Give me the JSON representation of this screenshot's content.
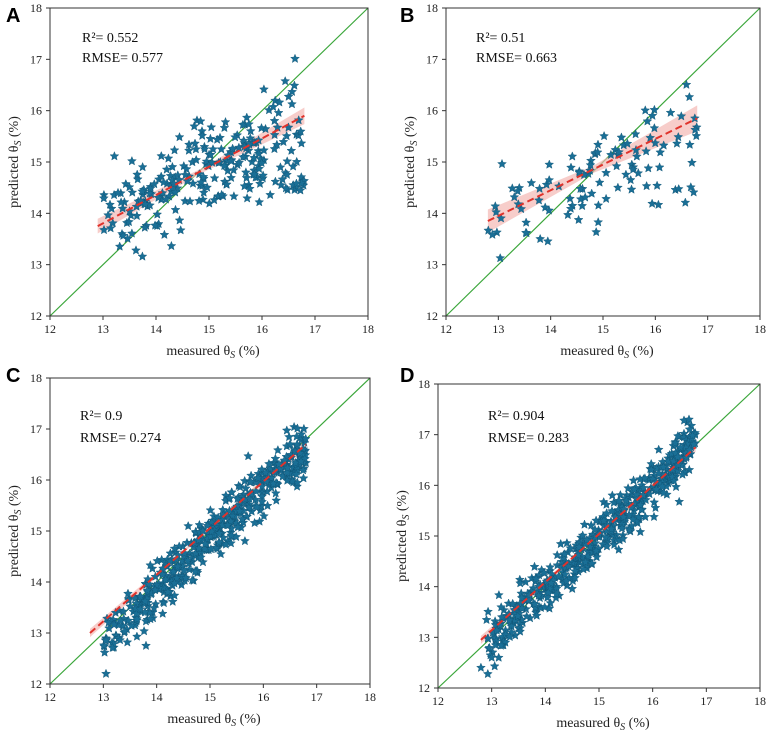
{
  "colors": {
    "marker": "#1a6f96",
    "identity_line": "#3aa63a",
    "fit_line": "#e0332c",
    "confidence_band": "#f4b8b4"
  },
  "chart_data": [
    {
      "panel": "A",
      "type": "scatter",
      "xlabel": "measured θ",
      "xlabel_sub": "S",
      "xlabel_unit": " (%)",
      "ylabel": "predicted  θ",
      "ylabel_sub": "S",
      "ylabel_unit": " (%)",
      "xlim": [
        12,
        18
      ],
      "ylim": [
        12,
        18
      ],
      "xticks": [
        12,
        13,
        14,
        15,
        16,
        17,
        18
      ],
      "yticks": [
        12,
        13,
        14,
        15,
        16,
        17,
        18
      ],
      "r2_text": "R²= 0.552",
      "rmse_text": "RMSE= 0.577",
      "fit": {
        "x": [
          12.9,
          16.8
        ],
        "y": [
          13.75,
          15.9
        ],
        "band": 0.09
      },
      "identity": true,
      "marker": "star",
      "n_points": 260,
      "scatter_center": {
        "x": 14.8,
        "y": 14.75
      }
    },
    {
      "panel": "B",
      "type": "scatter",
      "xlabel": "measured θ",
      "xlabel_sub": "S",
      "xlabel_unit": " (%)",
      "ylabel": "predicted  θ",
      "ylabel_sub": "S",
      "ylabel_unit": " (%)",
      "xlim": [
        12,
        18
      ],
      "ylim": [
        12,
        18
      ],
      "xticks": [
        12,
        13,
        14,
        15,
        16,
        17,
        18
      ],
      "yticks": [
        12,
        13,
        14,
        15,
        16,
        17,
        18
      ],
      "r2_text": "R²= 0.51",
      "rmse_text": "RMSE= 0.663",
      "fit": {
        "x": [
          12.8,
          16.8
        ],
        "y": [
          13.85,
          15.85
        ],
        "band": 0.14
      },
      "identity": true,
      "marker": "star",
      "n_points": 110,
      "scatter_center": {
        "x": 14.9,
        "y": 14.8
      }
    },
    {
      "panel": "C",
      "type": "scatter",
      "xlabel": "measured θ",
      "xlabel_sub": "S",
      "xlabel_unit": " (%)",
      "ylabel": "predicted  θ",
      "ylabel_sub": "S",
      "ylabel_unit": " (%)",
      "xlim": [
        12,
        18
      ],
      "ylim": [
        12,
        18
      ],
      "xticks": [
        12,
        13,
        14,
        15,
        16,
        17,
        18
      ],
      "yticks": [
        12,
        13,
        14,
        15,
        16,
        17,
        18
      ],
      "r2_text": "R²= 0.9",
      "rmse_text": "RMSE= 0.274",
      "fit": {
        "x": [
          12.75,
          16.8
        ],
        "y": [
          13.0,
          16.7
        ],
        "band": 0.05
      },
      "identity": true,
      "marker": "star",
      "n_points": 480,
      "scatter_center": {
        "x": 14.9,
        "y": 14.85
      }
    },
    {
      "panel": "D",
      "type": "scatter",
      "xlabel": "measured θ",
      "xlabel_sub": "S",
      "xlabel_unit": " (%)",
      "ylabel": "predicted  θ",
      "ylabel_sub": "S",
      "ylabel_unit": " (%)",
      "xlim": [
        12,
        18
      ],
      "ylim": [
        12,
        18
      ],
      "xticks": [
        12,
        13,
        14,
        15,
        16,
        17,
        18
      ],
      "yticks": [
        12,
        13,
        14,
        15,
        16,
        17,
        18
      ],
      "r2_text": "R²= 0.904",
      "rmse_text": "RMSE= 0.283",
      "fit": {
        "x": [
          12.8,
          16.8
        ],
        "y": [
          12.95,
          16.75
        ],
        "band": 0.05
      },
      "identity": true,
      "marker": "star",
      "n_points": 520,
      "scatter_center": {
        "x": 14.9,
        "y": 14.9
      }
    }
  ]
}
